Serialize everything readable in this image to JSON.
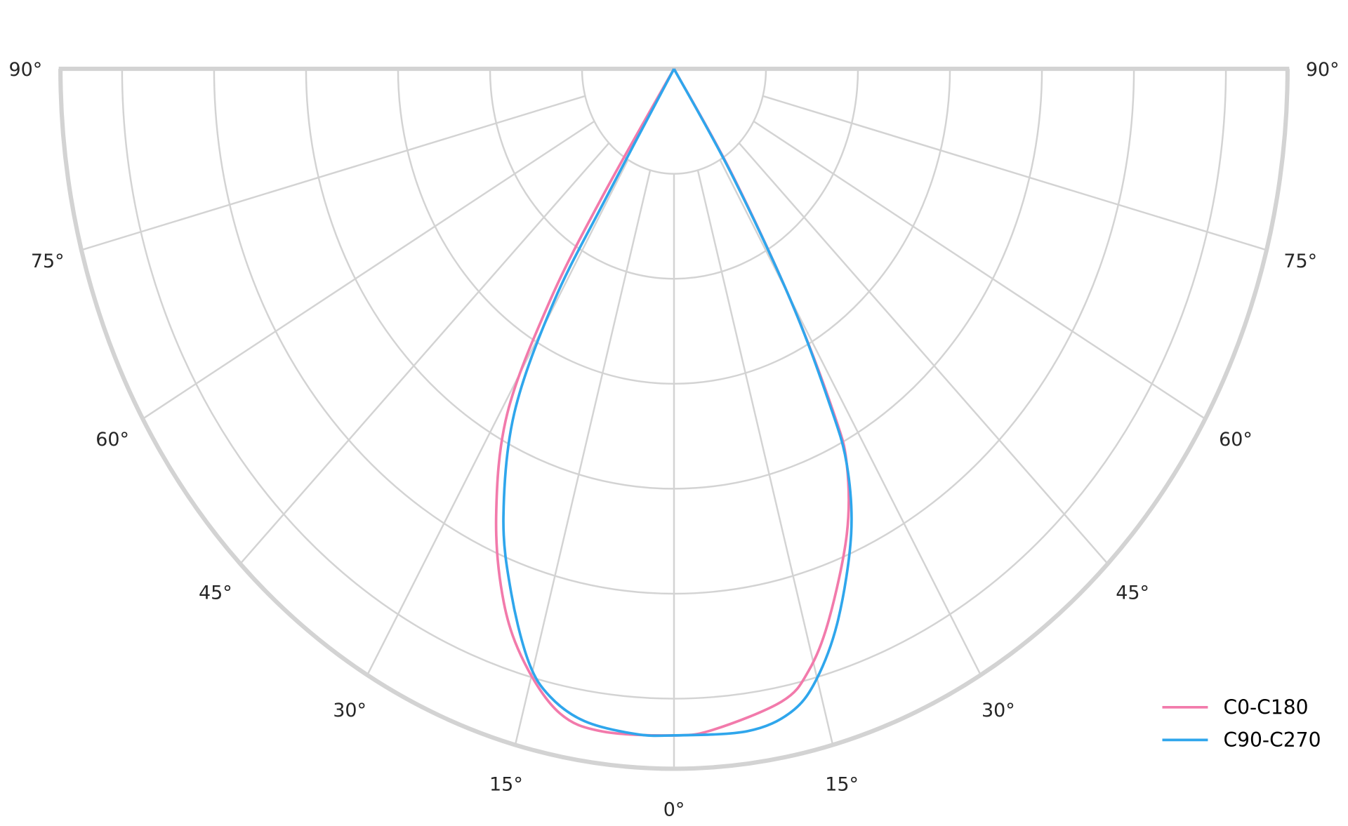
{
  "chart_data": {
    "type": "polar",
    "title": "",
    "angle_unit": "degrees",
    "angle_ticks": [
      "90°",
      "75°",
      "60°",
      "45°",
      "30°",
      "15°",
      "0°",
      "15°",
      "30°",
      "45°",
      "60°",
      "75°",
      "90°"
    ],
    "angle_tick_values": [
      -90,
      -75,
      -60,
      -45,
      -30,
      -15,
      0,
      15,
      30,
      45,
      60,
      75,
      90
    ],
    "radial_rings": [
      1,
      2,
      3,
      4,
      5,
      6
    ],
    "rlim": [
      0,
      6.67
    ],
    "radial_tick_labels": [],
    "grid": true,
    "legend_position": "bottom-right",
    "series": [
      {
        "name": "C0-C180",
        "color": "#f27aab",
        "points": [
          [
            -32.6,
            1.46
          ],
          [
            -31.4,
            2.59
          ],
          [
            -28.9,
            3.75
          ],
          [
            -24.4,
            4.68
          ],
          [
            -20,
            5.41
          ],
          [
            -16,
            5.89
          ],
          [
            -11.5,
            6.26
          ],
          [
            -7.1,
            6.36
          ],
          [
            0,
            6.35
          ],
          [
            3.9,
            6.31
          ],
          [
            11,
            6.14
          ],
          [
            14.3,
            5.92
          ],
          [
            17.8,
            5.51
          ],
          [
            23,
            4.81
          ],
          [
            26.5,
            4.21
          ],
          [
            27.9,
            3.71
          ],
          [
            29.9,
            2.55
          ],
          [
            32.2,
            1.16
          ]
        ]
      },
      {
        "name": "C90-C270",
        "color": "#2fa6ec",
        "points": [
          [
            -31,
            1.43
          ],
          [
            -30.5,
            2.57
          ],
          [
            -27.9,
            3.71
          ],
          [
            -23.5,
            4.65
          ],
          [
            -19.5,
            5.3
          ],
          [
            -15.6,
            5.87
          ],
          [
            -12.7,
            6.13
          ],
          [
            -8.9,
            6.29
          ],
          [
            -3.8,
            6.35
          ],
          [
            0,
            6.35
          ],
          [
            7.2,
            6.36
          ],
          [
            11.7,
            6.26
          ],
          [
            14.9,
            6.02
          ],
          [
            18.8,
            5.54
          ],
          [
            23.5,
            4.83
          ],
          [
            26.5,
            4.21
          ],
          [
            27.9,
            3.62
          ],
          [
            29.9,
            2.55
          ],
          [
            32,
            1.16
          ]
        ]
      }
    ]
  }
}
